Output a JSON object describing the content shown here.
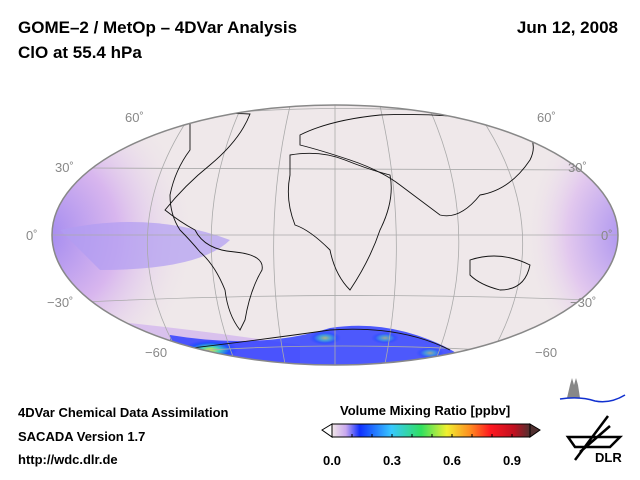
{
  "header": {
    "title": "GOME–2 / MetOp – 4DVar Analysis",
    "subtitle": "ClO at 55.4 hPa",
    "date": "Jun 12, 2008"
  },
  "map": {
    "projection": "Hammer-Aitoff",
    "lat_labels_left": [
      "60˚",
      "30˚",
      "0˚",
      "−30˚",
      "−60"
    ],
    "lat_labels_right": [
      "60˚",
      "30˚",
      "0˚",
      "−30˚",
      "−60"
    ]
  },
  "footer": {
    "line1": "4DVar Chemical Data Assimilation",
    "line2": "SACADA Version 1.7",
    "line3": "http://wdc.dlr.de"
  },
  "colorbar": {
    "title": "Volume Mixing Ratio [ppbv]",
    "min": 0.0,
    "max": 1.0,
    "ticks": [
      "0.0",
      "0.3",
      "0.6",
      "0.9"
    ],
    "colors": [
      "#f2e8e8",
      "#c9a8ee",
      "#1030ff",
      "#38c8ff",
      "#30e060",
      "#f0f030",
      "#ff8a20",
      "#ff1820",
      "#c01020",
      "#503030"
    ]
  },
  "logos": {
    "riu": "RIU",
    "dlr": "DLR"
  }
}
